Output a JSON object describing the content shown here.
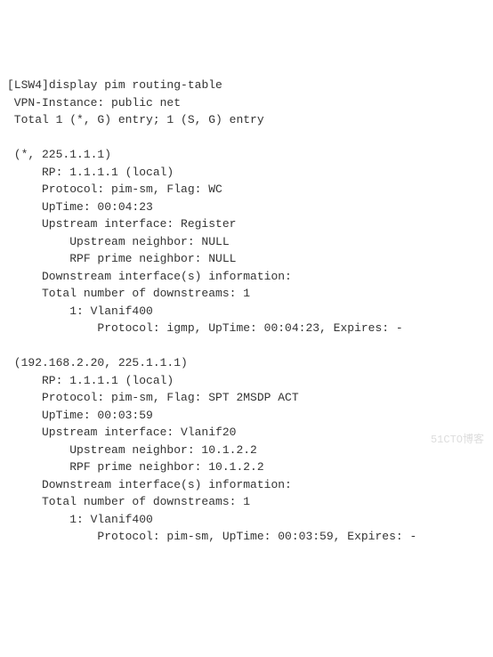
{
  "term": {
    "prompt": "[LSW4]",
    "command": "display pim routing-table",
    "vpn_line": " VPN-Instance: public net",
    "total_line": " Total 1 (*, G) entry; 1 (S, G) entry",
    "entries": [
      {
        "header": " (*, 225.1.1.1)",
        "rp": "     RP: 1.1.1.1 (local)",
        "protocol": "     Protocol: pim-sm, Flag: WC",
        "uptime": "     UpTime: 00:04:23",
        "upstream": "     Upstream interface: Register",
        "up_nbr": "         Upstream neighbor: NULL",
        "rpf_nbr": "         RPF prime neighbor: NULL",
        "ds_info": "     Downstream interface(s) information:",
        "ds_total": "     Total number of downstreams: 1",
        "ds_if": "         1: Vlanif400",
        "ds_proto": "             Protocol: igmp, UpTime: 00:04:23, Expires: -"
      },
      {
        "header": " (192.168.2.20, 225.1.1.1)",
        "rp": "     RP: 1.1.1.1 (local)",
        "protocol": "     Protocol: pim-sm, Flag: SPT 2MSDP ACT",
        "uptime": "     UpTime: 00:03:59",
        "upstream": "     Upstream interface: Vlanif20",
        "up_nbr": "         Upstream neighbor: 10.1.2.2",
        "rpf_nbr": "         RPF prime neighbor: 10.1.2.2",
        "ds_info": "     Downstream interface(s) information:",
        "ds_total": "     Total number of downstreams: 1",
        "ds_if": "         1: Vlanif400",
        "ds_proto": "             Protocol: pim-sm, UpTime: 00:03:59, Expires: -"
      }
    ]
  },
  "watermark": "51CTO博客"
}
